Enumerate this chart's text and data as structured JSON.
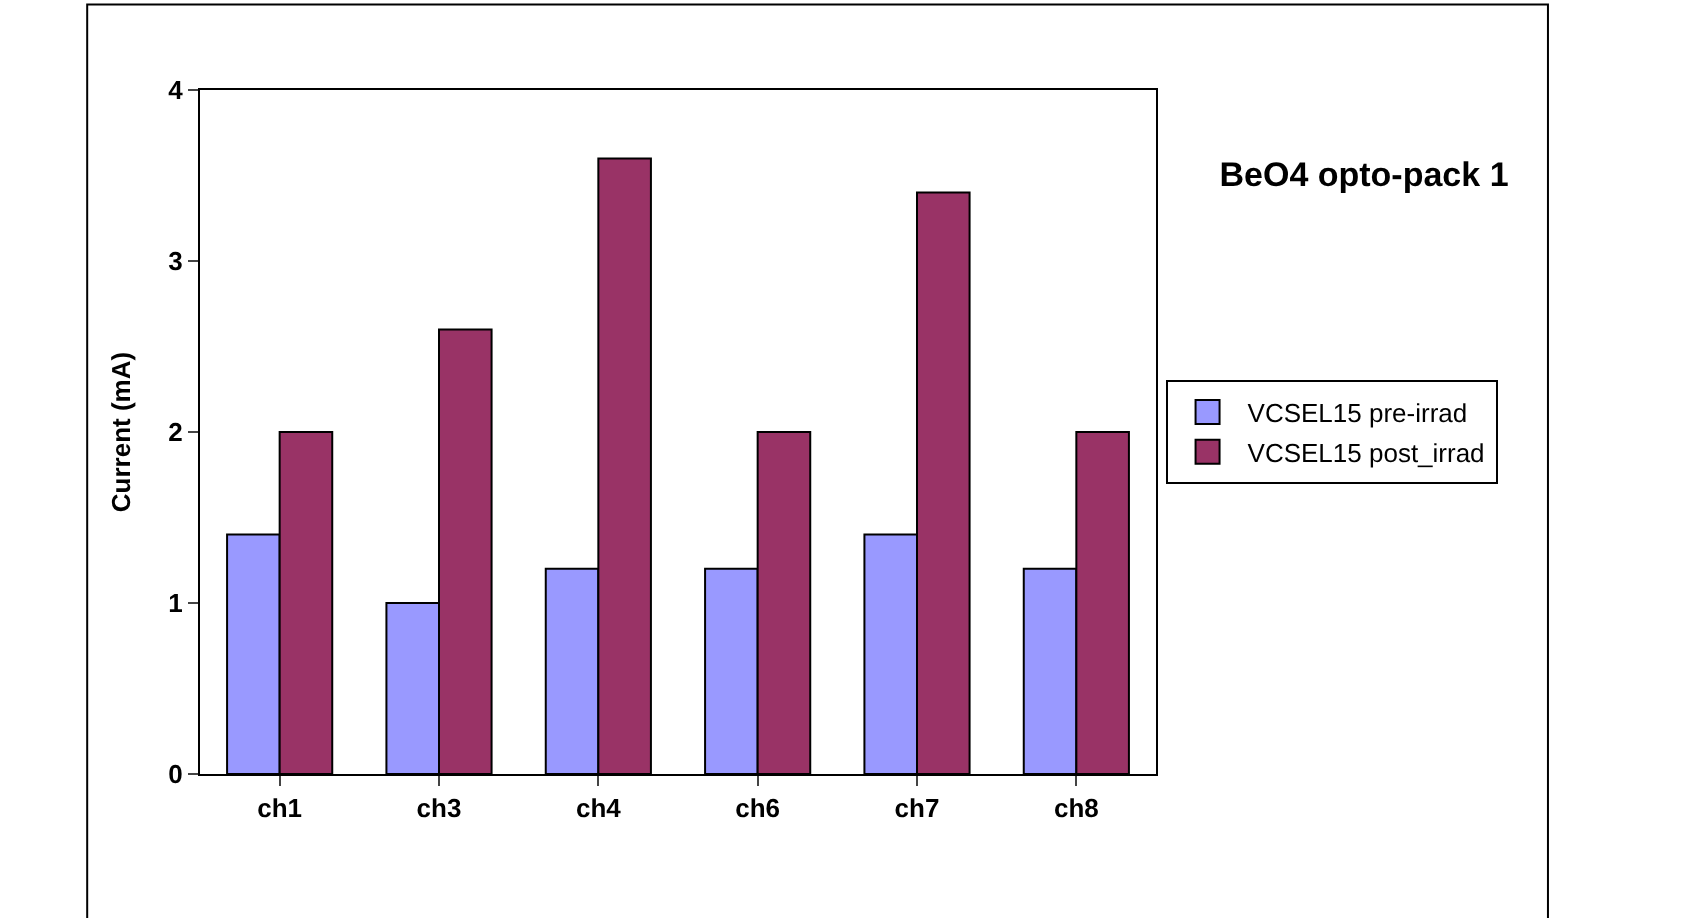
{
  "chart_data": {
    "type": "bar",
    "title": "BeO4 opto-pack 1",
    "ylabel": "Current (mA)",
    "categories": [
      "ch1",
      "ch3",
      "ch4",
      "ch6",
      "ch7",
      "ch8"
    ],
    "series": [
      {
        "name": "VCSEL15 pre-irrad",
        "color": "#9999ff",
        "values": [
          1.4,
          1.0,
          1.2,
          1.2,
          1.4,
          1.2
        ]
      },
      {
        "name": "VCSEL15 post_irrad",
        "color": "#993366",
        "values": [
          2.0,
          2.6,
          3.6,
          2.0,
          3.4,
          2.0
        ]
      }
    ],
    "ylim": [
      0,
      4
    ],
    "yticks": [
      0,
      1,
      2,
      3,
      4
    ],
    "grid": false,
    "legend": "right"
  }
}
